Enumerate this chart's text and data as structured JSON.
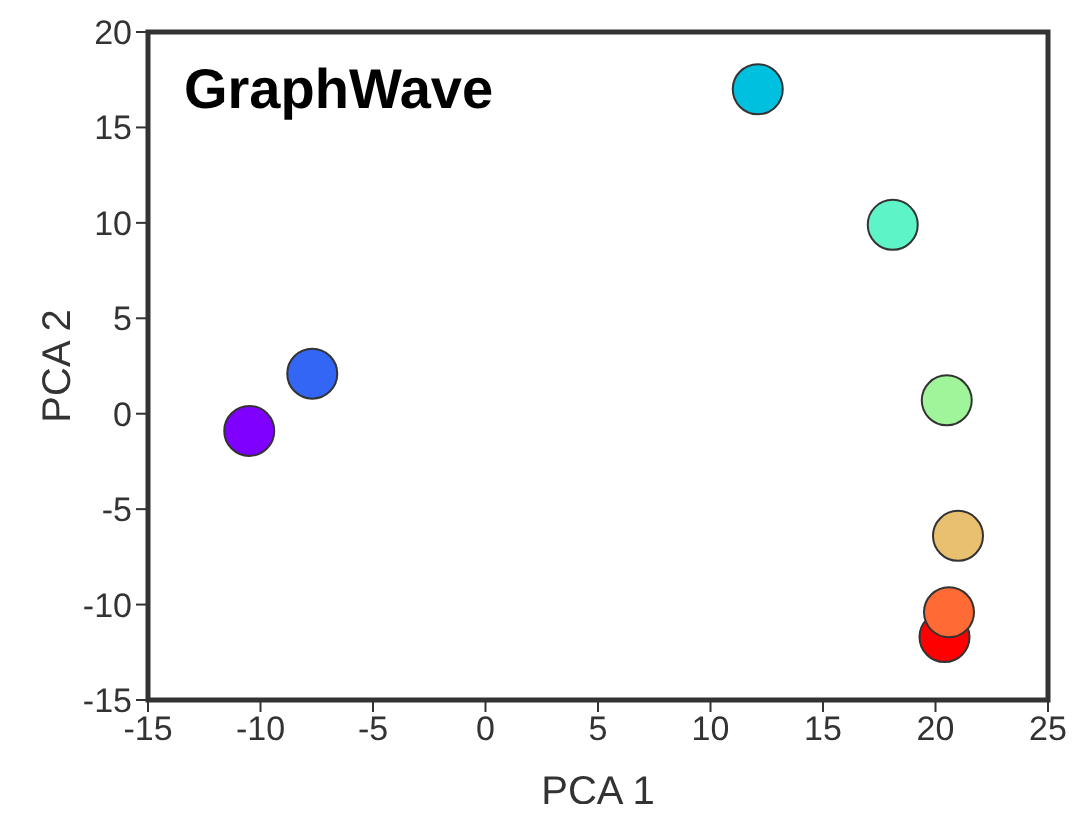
{
  "chart_data": {
    "type": "scatter",
    "xlabel": "PCA 1",
    "ylabel": "PCA 2",
    "annotations": [
      "GraphWave"
    ],
    "x": [
      -10.5,
      -7.7,
      12.1,
      18.1,
      20.5,
      21.0,
      20.4,
      20.6
    ],
    "values": [
      -0.9,
      2.1,
      17.0,
      9.9,
      0.7,
      -6.4,
      -11.7,
      -10.4
    ],
    "colors": [
      "#7f00ff",
      "#3366f5",
      "#00c0e0",
      "#5df5c8",
      "#a0f59a",
      "#e8c070",
      "#ff0000",
      "#ff6a35"
    ],
    "xlim": [
      -15,
      25
    ],
    "xticks": [
      -15,
      -10,
      -5,
      0,
      5,
      10,
      15,
      20,
      25
    ],
    "ylim": [
      -15,
      20
    ],
    "yticks": [
      -15,
      -10,
      -5,
      0,
      5,
      10,
      15,
      20
    ],
    "grid": false,
    "marker": "circle"
  }
}
